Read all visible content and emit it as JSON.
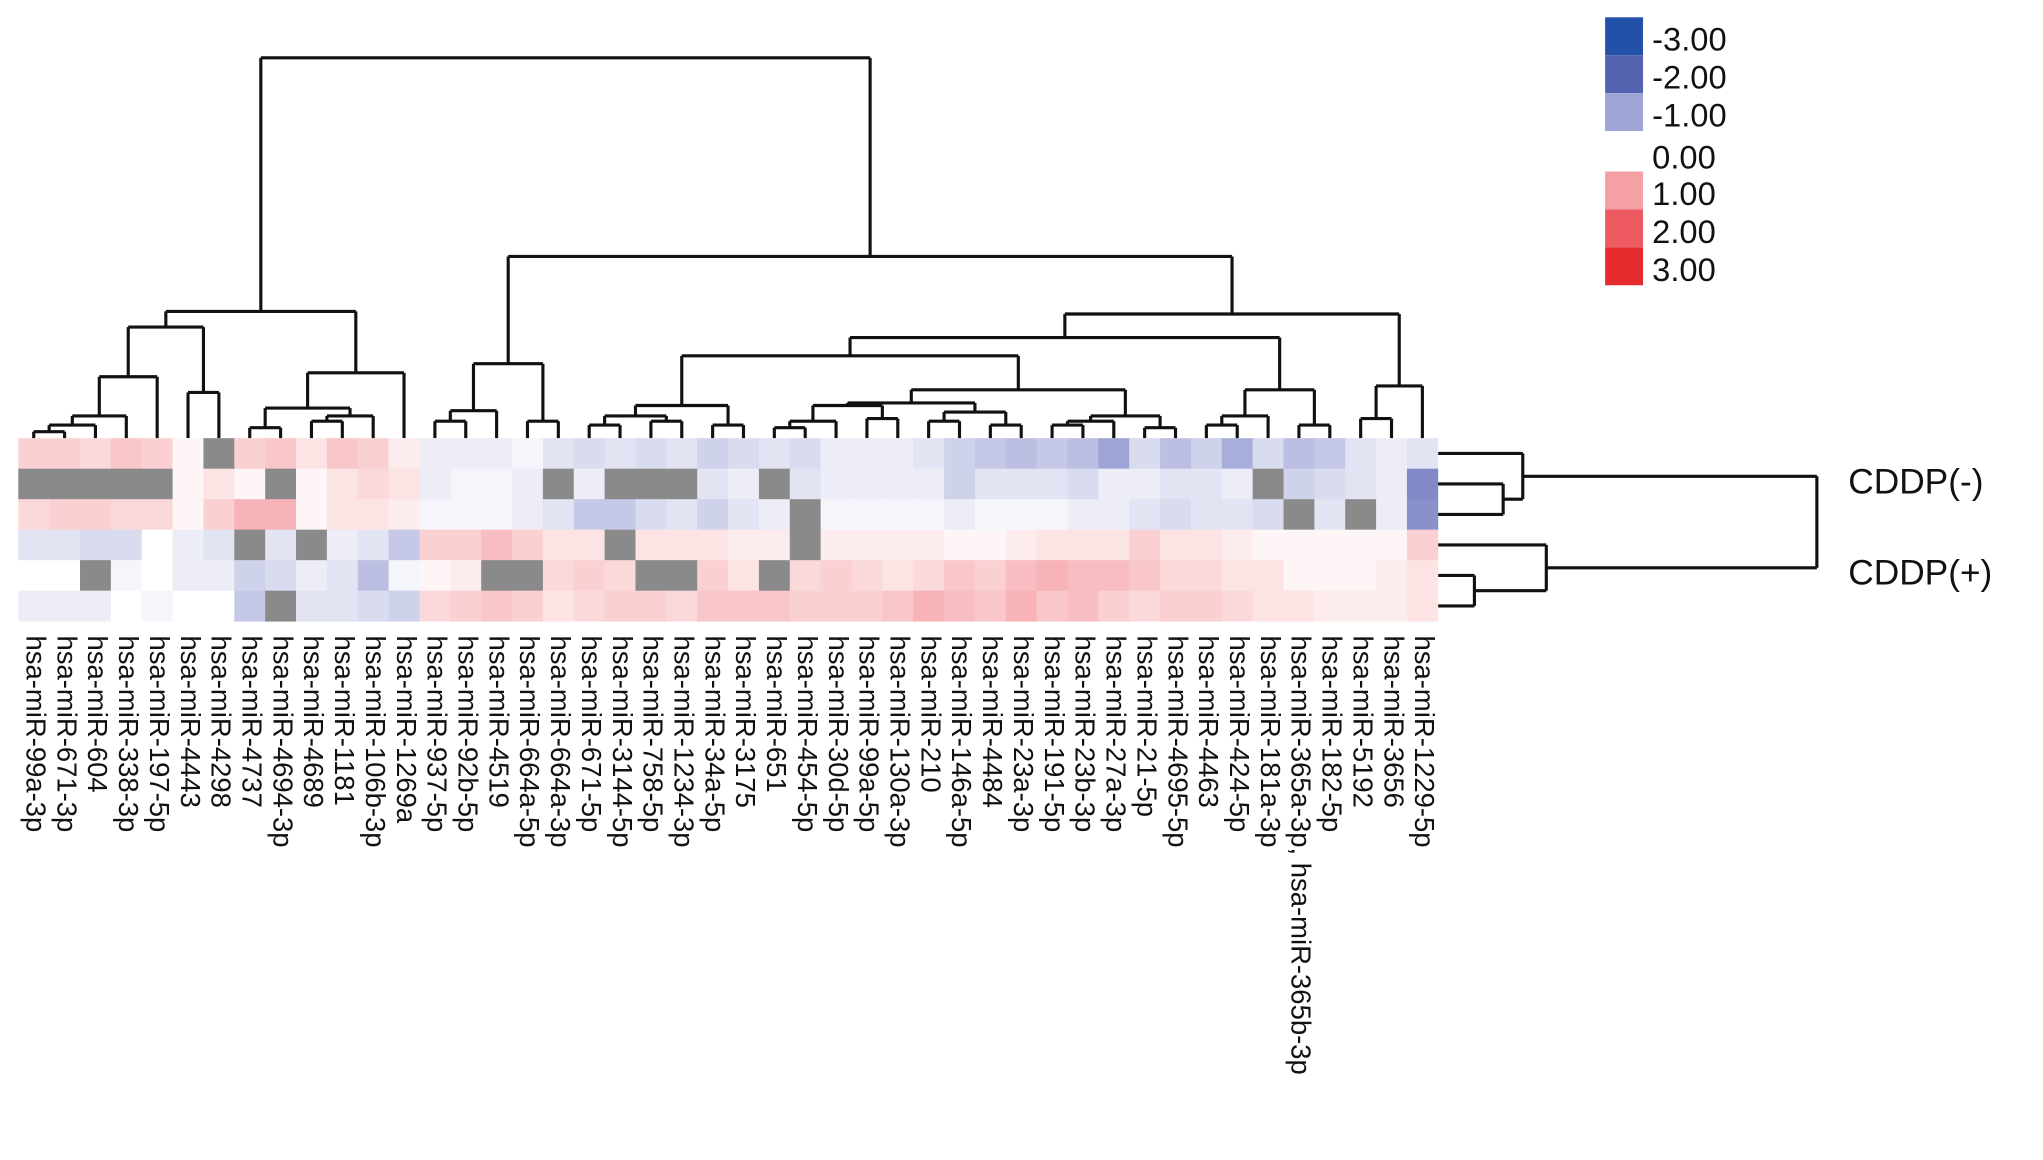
{
  "chart_data": {
    "type": "heatmap",
    "columns": [
      "hsa-miR-99a-3p",
      "hsa-miR-671-3p",
      "hsa-miR-604",
      "hsa-miR-338-3p",
      "hsa-miR-197-5p",
      "hsa-miR-4443",
      "hsa-miR-4298",
      "hsa-miR-4737",
      "hsa-miR-4694-3p",
      "hsa-miR-4689",
      "hsa-miR-1181",
      "hsa-miR-106b-3p",
      "hsa-miR-1269a",
      "hsa-miR-937-5p",
      "hsa-miR-92b-5p",
      "hsa-miR-4519",
      "hsa-miR-664a-5p",
      "hsa-miR-664a-3p",
      "hsa-miR-671-5p",
      "hsa-miR-3144-5p",
      "hsa-miR-758-5p",
      "hsa-miR-1234-3p",
      "hsa-miR-34a-5p",
      "hsa-miR-3175",
      "hsa-miR-651",
      "hsa-miR-454-5p",
      "hsa-miR-30d-5p",
      "hsa-miR-99a-5p",
      "hsa-miR-130a-3p",
      "hsa-miR-210",
      "hsa-miR-146a-5p",
      "hsa-miR-4484",
      "hsa-miR-23a-3p",
      "hsa-miR-191-5p",
      "hsa-miR-23b-3p",
      "hsa-miR-27a-3p",
      "hsa-miR-21-5p",
      "hsa-miR-4695-5p",
      "hsa-miR-4463",
      "hsa-miR-424-5p",
      "hsa-miR-181a-3p",
      "hsa-miR-365a-3p, hsa-miR-365b-3p",
      "hsa-miR-182-5p",
      "hsa-miR-5192",
      "hsa-miR-3656",
      "hsa-miR-1229-5p"
    ],
    "row_groups": [
      "CDDP(-)",
      "CDDP(+)"
    ],
    "values": [
      [
        0.5,
        0.5,
        0.4,
        0.6,
        0.5,
        0.1,
        null,
        0.5,
        0.6,
        0.3,
        0.6,
        0.5,
        0.2,
        -0.2,
        -0.2,
        -0.2,
        -0.1,
        -0.3,
        -0.4,
        -0.3,
        -0.4,
        -0.3,
        -0.5,
        -0.4,
        -0.3,
        -0.4,
        -0.2,
        -0.2,
        -0.2,
        -0.3,
        -0.5,
        -0.6,
        -0.7,
        -0.6,
        -0.7,
        -1.0,
        -0.4,
        -0.7,
        -0.5,
        -0.9,
        -0.4,
        -0.7,
        -0.6,
        -0.3,
        -0.2,
        -0.3
      ],
      [
        null,
        null,
        null,
        null,
        null,
        0.1,
        0.3,
        0.1,
        null,
        0.1,
        0.3,
        0.4,
        0.3,
        -0.2,
        -0.1,
        -0.1,
        -0.2,
        null,
        -0.2,
        null,
        null,
        null,
        -0.3,
        -0.2,
        null,
        -0.3,
        -0.2,
        -0.2,
        -0.2,
        -0.2,
        -0.5,
        -0.3,
        -0.3,
        -0.3,
        -0.4,
        -0.2,
        -0.2,
        -0.3,
        -0.3,
        -0.2,
        null,
        -0.5,
        -0.4,
        -0.3,
        -0.2,
        -1.4
      ],
      [
        0.4,
        0.5,
        0.5,
        0.4,
        0.4,
        0.1,
        0.5,
        0.8,
        0.8,
        0.1,
        0.3,
        0.3,
        0.2,
        -0.1,
        -0.1,
        -0.1,
        -0.2,
        -0.3,
        -0.6,
        -0.6,
        -0.4,
        -0.3,
        -0.5,
        -0.3,
        -0.2,
        null,
        -0.1,
        -0.1,
        -0.1,
        -0.1,
        -0.2,
        -0.1,
        -0.1,
        -0.1,
        -0.2,
        -0.2,
        -0.3,
        -0.4,
        -0.3,
        -0.3,
        -0.4,
        null,
        -0.3,
        null,
        -0.2,
        -1.3
      ],
      [
        -0.3,
        -0.3,
        -0.4,
        -0.4,
        0,
        -0.2,
        -0.3,
        null,
        -0.3,
        null,
        -0.2,
        -0.3,
        -0.6,
        0.5,
        0.5,
        0.7,
        0.5,
        0.3,
        0.3,
        null,
        0.3,
        0.3,
        0.3,
        0.2,
        0.2,
        null,
        0.2,
        0.2,
        0.2,
        0.2,
        0.1,
        0.1,
        0.2,
        0.3,
        0.3,
        0.3,
        0.5,
        0.3,
        0.3,
        0.2,
        0.1,
        0.1,
        0.1,
        0.1,
        0.1,
        0.5
      ],
      [
        0,
        0,
        null,
        -0.1,
        0,
        -0.2,
        -0.2,
        -0.5,
        -0.4,
        -0.2,
        -0.3,
        -0.7,
        -0.1,
        0.1,
        0.2,
        null,
        null,
        0.4,
        0.5,
        0.4,
        null,
        null,
        0.5,
        0.3,
        null,
        0.4,
        0.5,
        0.4,
        0.3,
        0.4,
        0.6,
        0.5,
        0.7,
        0.8,
        0.7,
        0.7,
        0.6,
        0.4,
        0.4,
        0.3,
        0.3,
        0.1,
        0.1,
        0.1,
        0.2,
        0.3
      ],
      [
        -0.2,
        -0.2,
        -0.2,
        0,
        -0.1,
        0,
        0,
        -0.6,
        null,
        -0.3,
        -0.3,
        -0.4,
        -0.5,
        0.4,
        0.5,
        0.6,
        0.5,
        0.3,
        0.4,
        0.5,
        0.5,
        0.4,
        0.6,
        0.6,
        0.6,
        0.5,
        0.5,
        0.5,
        0.6,
        0.8,
        0.7,
        0.6,
        0.8,
        0.6,
        0.7,
        0.5,
        0.4,
        0.5,
        0.5,
        0.4,
        0.3,
        0.3,
        0.2,
        0.2,
        0.2,
        0.3
      ]
    ],
    "legend_ticks": [
      {
        "value": -3,
        "label": "-3.00"
      },
      {
        "value": -2,
        "label": "-2.00"
      },
      {
        "value": -1,
        "label": "-1.00"
      },
      {
        "value": 0,
        "label": "0.00"
      },
      {
        "value": 1,
        "label": "1.00"
      },
      {
        "value": 2,
        "label": "2.00"
      },
      {
        "value": 3,
        "label": "3.00"
      }
    ],
    "legend_colors": [
      "#2350a8",
      "#5463b0",
      "#9fa4d6",
      "#ffffff",
      "#f5a0a5",
      "#ee5a62",
      "#e52b2e"
    ],
    "missing_color": "#8a8a8a"
  }
}
